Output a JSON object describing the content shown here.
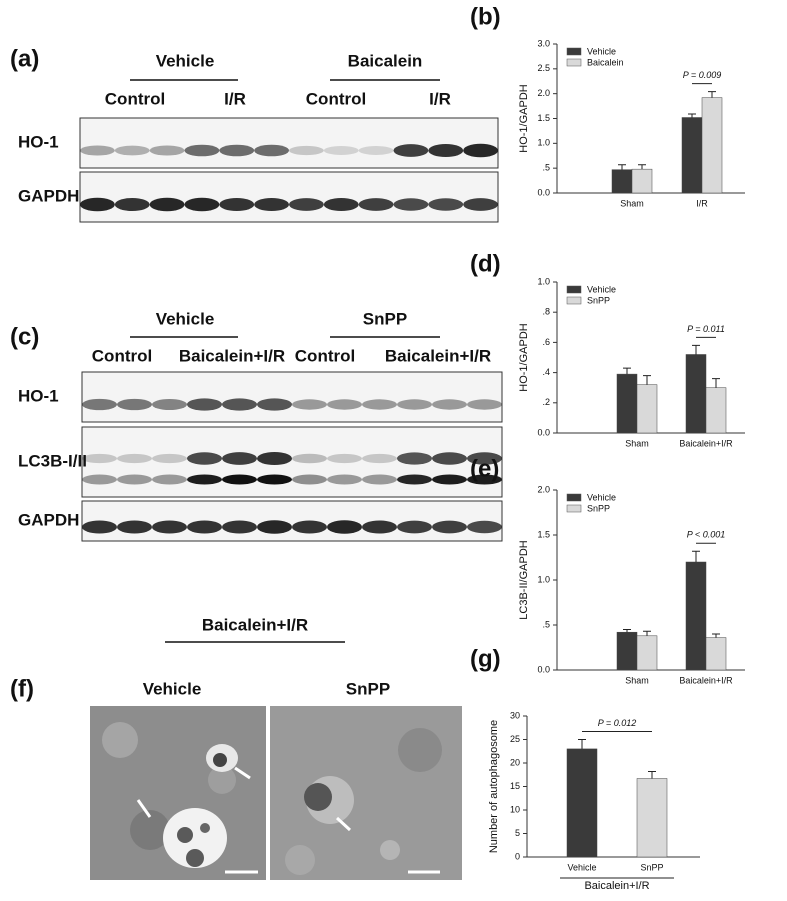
{
  "blots": [
    {
      "label": "(a)",
      "groups": [
        "Vehicle",
        "Baicalein"
      ],
      "subgroups": [
        "Control",
        "I/R",
        "Control",
        "I/R"
      ],
      "rows": [
        "HO-1",
        "GAPDH"
      ]
    },
    {
      "label": "(c)",
      "groups": [
        "Vehicle",
        "SnPP"
      ],
      "subgroups": [
        "Control",
        "Baicalein+I/R",
        "Control",
        "Baicalein+I/R"
      ],
      "rows": [
        "HO-1",
        "LC3B-I/II",
        "GAPDH"
      ]
    }
  ],
  "micrographs": {
    "label": "(f)",
    "header": "Baicalein+I/R",
    "images": [
      "Vehicle",
      "SnPP"
    ]
  },
  "chart_data": [
    {
      "type": "bar",
      "label": "(b)",
      "y_label": "HO-1/GAPDH",
      "categories": [
        "Sham",
        "I/R"
      ],
      "series": [
        {
          "name": "Vehicle",
          "color": "#3a3a3a",
          "values": [
            0.47,
            1.52
          ],
          "errors": [
            0.1,
            0.07
          ]
        },
        {
          "name": "Baicalein",
          "color": "#d9d9d9",
          "values": [
            0.48,
            1.92
          ],
          "errors": [
            0.09,
            0.12
          ]
        }
      ],
      "ylim": [
        0,
        3.0
      ],
      "yticks": [
        {
          "value": 0,
          "label": "0.0"
        },
        {
          "value": 0.5,
          "label": ".5"
        },
        {
          "value": 1,
          "label": "1.0"
        },
        1.5,
        {
          "value": 2,
          "label": "2.0"
        },
        2.5,
        {
          "value": 3,
          "label": "3.0"
        }
      ],
      "annotation": "P = 0.009",
      "legend": "upper left"
    },
    {
      "type": "bar",
      "label": "(d)",
      "y_label": "HO-1/GAPDH",
      "categories": [
        "Sham",
        "Baicalein+I/R"
      ],
      "series": [
        {
          "name": "Vehicle",
          "color": "#3a3a3a",
          "values": [
            0.39,
            0.52
          ],
          "errors": [
            0.04,
            0.06
          ]
        },
        {
          "name": "SnPP",
          "color": "#d9d9d9",
          "values": [
            0.32,
            0.3
          ],
          "errors": [
            0.06,
            0.06
          ]
        }
      ],
      "ylim": [
        0,
        1.0
      ],
      "yticks": [
        {
          "value": 0,
          "label": "0.0"
        },
        {
          "value": 0.2,
          "label": ".2"
        },
        {
          "value": 0.4,
          "label": ".4"
        },
        {
          "value": 0.6,
          "label": ".6"
        },
        {
          "value": 0.8,
          "label": ".8"
        },
        {
          "value": 1,
          "label": "1.0"
        }
      ],
      "annotation": "P = 0.011",
      "legend": "upper left"
    },
    {
      "type": "bar",
      "label": "(e)",
      "y_label": "LC3B-II/GAPDH",
      "categories": [
        "Sham",
        "Baicalein+I/R"
      ],
      "series": [
        {
          "name": "Vehicle",
          "color": "#3a3a3a",
          "values": [
            0.42,
            1.2
          ],
          "errors": [
            0.03,
            0.12
          ]
        },
        {
          "name": "SnPP",
          "color": "#d9d9d9",
          "values": [
            0.38,
            0.36
          ],
          "errors": [
            0.05,
            0.04
          ]
        }
      ],
      "ylim": [
        0,
        2.0
      ],
      "yticks": [
        {
          "value": 0,
          "label": "0.0"
        },
        {
          "value": 0.5,
          "label": ".5"
        },
        {
          "value": 1,
          "label": "1.0"
        },
        1.5,
        {
          "value": 2,
          "label": "2.0"
        }
      ],
      "annotation": "P < 0.001",
      "legend": "upper left"
    },
    {
      "type": "bar",
      "label": "(g)",
      "y_label": "Number of autophagosome",
      "x_label": "Baicalein+I/R",
      "categories": [
        "Vehicle",
        "SnPP"
      ],
      "values": [
        23,
        16.7
      ],
      "errors": [
        2,
        1.5
      ],
      "colors": [
        "#3a3a3a",
        "#d9d9d9"
      ],
      "ylim": [
        0,
        30
      ],
      "yticks": [
        0,
        5,
        10,
        15,
        20,
        25,
        30
      ],
      "annotation": "P = 0.012"
    }
  ]
}
